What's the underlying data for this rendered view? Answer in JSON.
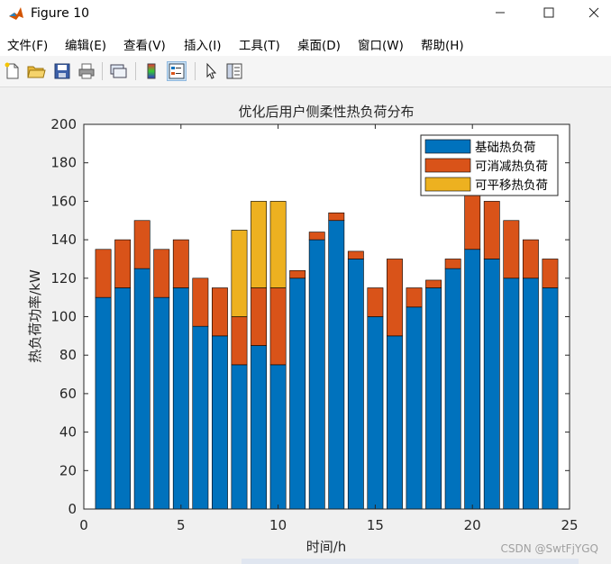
{
  "window": {
    "title": "Figure 10"
  },
  "menu": [
    "文件(F)",
    "编辑(E)",
    "查看(V)",
    "插入(I)",
    "工具(T)",
    "桌面(D)",
    "窗口(W)",
    "帮助(H)"
  ],
  "toolbar_icons": [
    "new-file-icon",
    "open-folder-icon",
    "save-icon",
    "print-icon",
    "link-plot-icon",
    "colorbar-icon",
    "legend-icon",
    "pointer-icon",
    "property-editor-icon"
  ],
  "watermark": "CSDN @SwtFjYGQ",
  "chart_data": {
    "type": "bar",
    "stacked": true,
    "title": "优化后用户侧柔性热负荷分布",
    "xlabel": "时间/h",
    "ylabel": "热负荷功率/kW",
    "xlim": [
      0,
      25
    ],
    "ylim": [
      0,
      200
    ],
    "xticks": [
      0,
      5,
      10,
      15,
      20,
      25
    ],
    "yticks": [
      0,
      20,
      40,
      60,
      80,
      100,
      120,
      140,
      160,
      180,
      200
    ],
    "legend_position": "top-right",
    "x": [
      1,
      2,
      3,
      4,
      5,
      6,
      7,
      8,
      9,
      10,
      11,
      12,
      13,
      14,
      15,
      16,
      17,
      18,
      19,
      20,
      21,
      22,
      23,
      24
    ],
    "series": [
      {
        "name": "基础热负荷",
        "color": "#0072BD",
        "values": [
          110,
          115,
          125,
          110,
          115,
          95,
          90,
          75,
          85,
          75,
          120,
          140,
          150,
          130,
          100,
          90,
          105,
          115,
          125,
          135,
          130,
          120,
          120,
          115
        ]
      },
      {
        "name": "可消减热负荷",
        "color": "#D95319",
        "values": [
          25,
          25,
          25,
          25,
          25,
          25,
          25,
          25,
          30,
          40,
          4,
          4,
          4,
          4,
          15,
          40,
          10,
          4,
          5,
          30,
          30,
          30,
          20,
          15
        ]
      },
      {
        "name": "可平移热负荷",
        "color": "#EDB120",
        "values": [
          0,
          0,
          0,
          0,
          0,
          0,
          0,
          45,
          45,
          45,
          0,
          0,
          0,
          0,
          0,
          0,
          0,
          0,
          0,
          0,
          0,
          0,
          0,
          0
        ]
      }
    ]
  }
}
